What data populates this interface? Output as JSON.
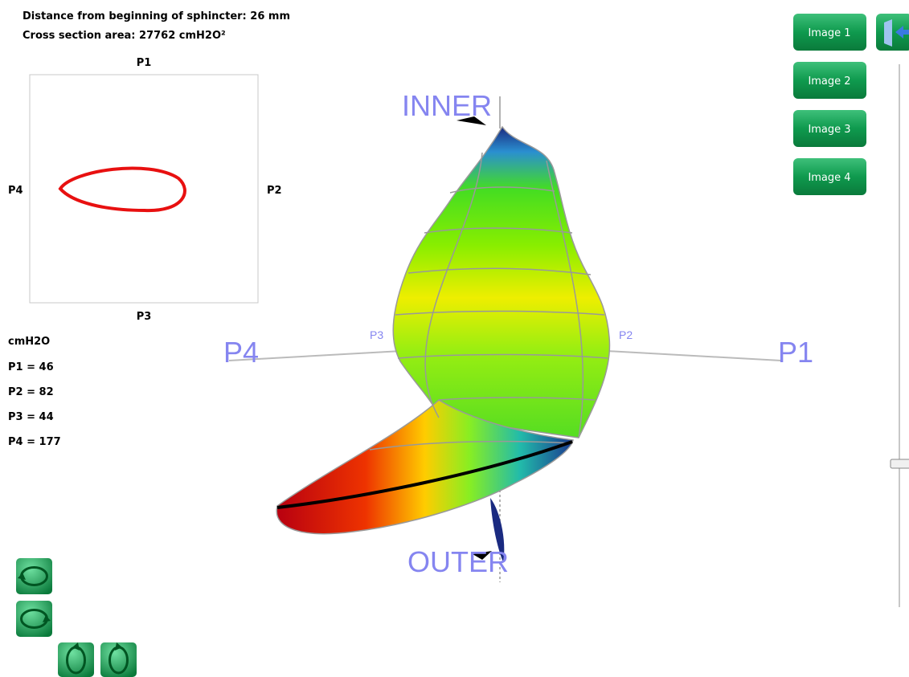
{
  "info": {
    "distance": "Distance from beginning of sphincter: 26 mm",
    "area": "Cross section area: 27762 cmH2O²"
  },
  "cross_section": {
    "top": "P1",
    "right": "P2",
    "bottom": "P3",
    "left": "P4"
  },
  "pressures": {
    "unit": "cmH2O",
    "items": [
      "P1 = 46",
      "P2 = 82",
      "P3 = 44",
      "P4 = 177"
    ]
  },
  "view3d": {
    "inner": "INNER",
    "outer": "OUTER",
    "axis_left": "P4",
    "axis_right": "P1",
    "marker_left": "P3",
    "marker_right": "P2"
  },
  "buttons": [
    "Image 1",
    "Image 2",
    "Image 3",
    "Image 4"
  ]
}
